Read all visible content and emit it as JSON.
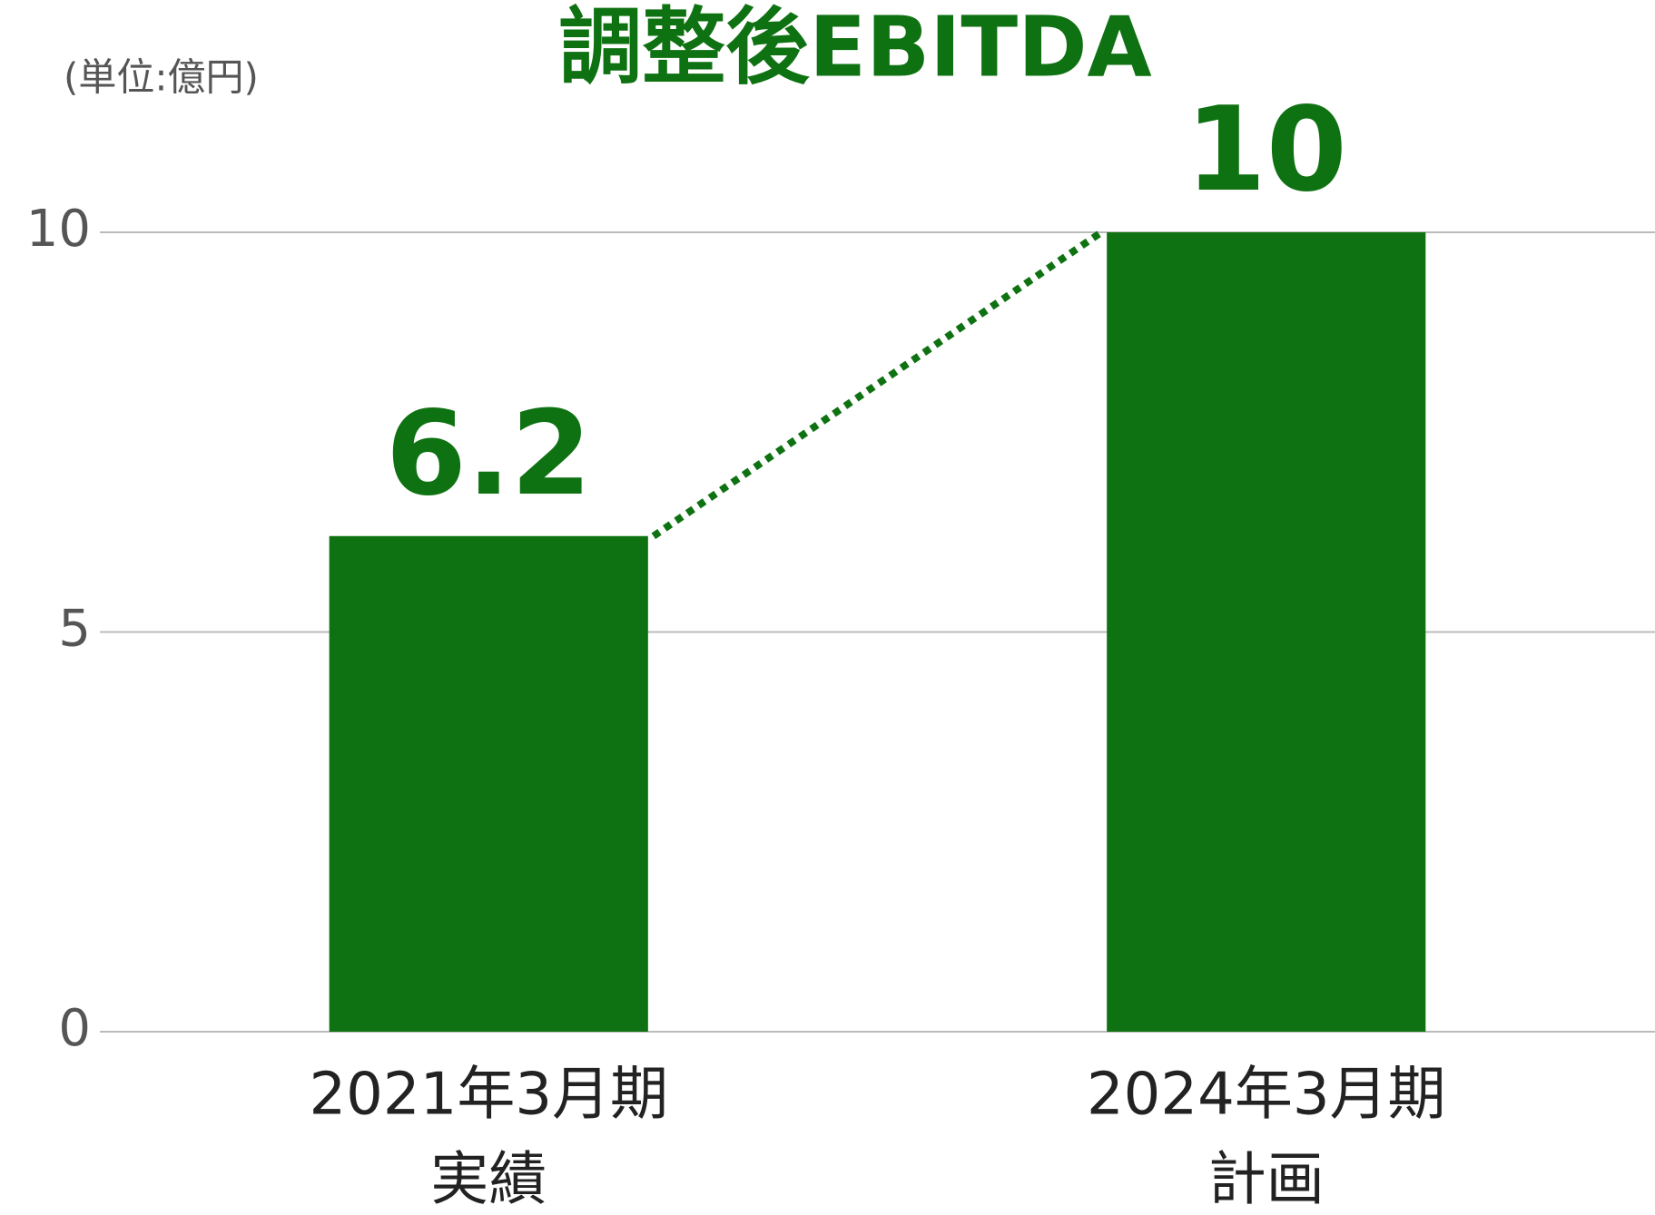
{
  "chart_data": {
    "type": "bar",
    "title": "調整後EBITDA",
    "unit_label": "(単位:億円)",
    "categories": [
      [
        "2021年3月期",
        "実績"
      ],
      [
        "2024年3月期",
        "計画"
      ]
    ],
    "values": [
      6.2,
      10
    ],
    "color": "#0f7212",
    "ylim": [
      0,
      10
    ],
    "yticks": [
      0,
      5,
      10
    ],
    "grid": true,
    "connector": "dotted"
  }
}
